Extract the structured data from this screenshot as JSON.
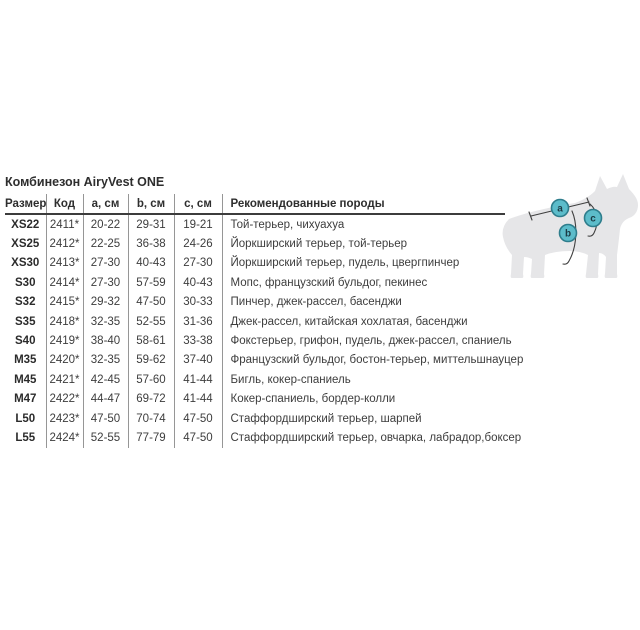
{
  "page": {
    "title": "Комбинезон AiryVest ONE"
  },
  "table": {
    "col_keys": [
      "size",
      "code",
      "a",
      "b",
      "c",
      "breeds"
    ],
    "headers": [
      "Размер",
      "Код",
      "a, см",
      "b, см",
      "c, см",
      "Рекомендованные породы"
    ],
    "rows": [
      [
        "XS22",
        "2411*",
        "20-22",
        "29-31",
        "19-21",
        "Той-терьер, чихуахуа"
      ],
      [
        "XS25",
        "2412*",
        "22-25",
        "36-38",
        "24-26",
        "Йоркширский терьер, той-терьер"
      ],
      [
        "XS30",
        "2413*",
        "27-30",
        "40-43",
        "27-30",
        "Йоркширский терьер, пудель, цвергпинчер"
      ],
      [
        "S30",
        "2414*",
        "27-30",
        "57-59",
        "40-43",
        "Мопс, французский бульдог, пекинес"
      ],
      [
        "S32",
        "2415*",
        "29-32",
        "47-50",
        "30-33",
        "Пинчер, джек-рассел, басенджи"
      ],
      [
        "S35",
        "2418*",
        "32-35",
        "52-55",
        "31-36",
        "Джек-рассел, китайская хохлатая, басенджи"
      ],
      [
        "S40",
        "2419*",
        "38-40",
        "58-61",
        "33-38",
        "Фокстерьер, грифон, пудель, джек-рассел, спаниель"
      ],
      [
        "M35",
        "2420*",
        "32-35",
        "59-62",
        "37-40",
        "Французский бульдог, бостон-терьер, миттельшнауцер"
      ],
      [
        "M45",
        "2421*",
        "42-45",
        "57-60",
        "41-44",
        "Бигль, кокер-спаниель"
      ],
      [
        "M47",
        "2422*",
        "44-47",
        "69-72",
        "41-44",
        "Кокер-спаниель, бордер-колли"
      ],
      [
        "L50",
        "2423*",
        "47-50",
        "70-74",
        "47-50",
        "Стаффордширский терьер, шарпей"
      ],
      [
        "L55",
        "2424*",
        "52-55",
        "77-79",
        "47-50",
        "Стаффордширский терьер, овчарка, лабрадор,боксер"
      ]
    ]
  },
  "diagram": {
    "labels": {
      "a": "a",
      "b": "b",
      "c": "c"
    },
    "colors": {
      "marker_fill": "#5cbcca",
      "marker_stroke": "#2e7d8c",
      "silhouette": "#e6e6e8",
      "measure_line": "#3f3f3f"
    }
  }
}
